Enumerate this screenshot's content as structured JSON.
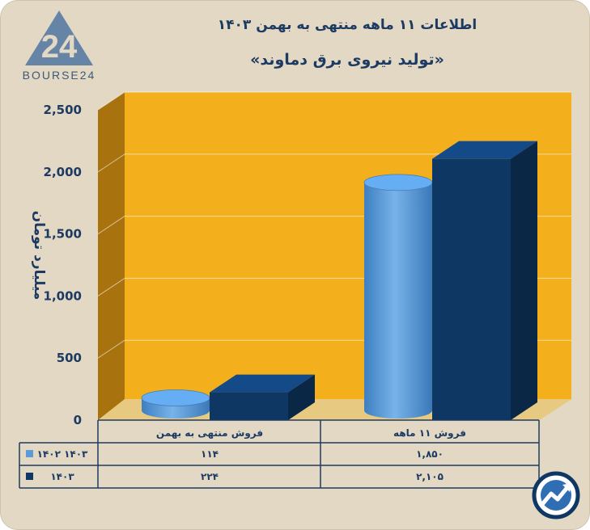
{
  "header": {
    "title": "اطلاعات ۱۱ ماهه منتهی به بهمن ۱۴۰۳",
    "subtitle": "«تولید نیروی برق دماوند»"
  },
  "logo": {
    "mark": "24",
    "text": "BOURSE24"
  },
  "colors": {
    "background": "#e3d8c4",
    "plot_back": "#f4b01c",
    "plot_side": "#a8720e",
    "plot_floor": "#e7c982",
    "series_1402": "#5b9bd9",
    "series_1403": "#0f3764",
    "text": "#1d3a62"
  },
  "chart_data": {
    "type": "bar",
    "title": "«تولید نیروی برق دماوند»",
    "ylabel": "میلیارد تومان",
    "xlabel": "",
    "ylim": [
      0,
      2500
    ],
    "yticks": [
      0,
      500,
      1000,
      1500,
      2000,
      2500
    ],
    "ytick_labels": [
      "0",
      "500",
      "1,000",
      "1,500",
      "2,000",
      "2,500"
    ],
    "categories": [
      "فروش منتهی به بهمن",
      "فروش ۱۱ ماهه"
    ],
    "series": [
      {
        "name": "۱۴۰۲ ۱۴۰۳",
        "values": [
          114,
          1850
        ],
        "labels": [
          "۱۱۴",
          "۱,۸۵۰"
        ]
      },
      {
        "name": "۱۴۰۳",
        "values": [
          224,
          2105
        ],
        "labels": [
          "۲۲۴",
          "۲,۱۰۵"
        ]
      }
    ],
    "grid": true,
    "legend": "table-left"
  },
  "watermark_icon": "trend-arrow-circle-icon"
}
